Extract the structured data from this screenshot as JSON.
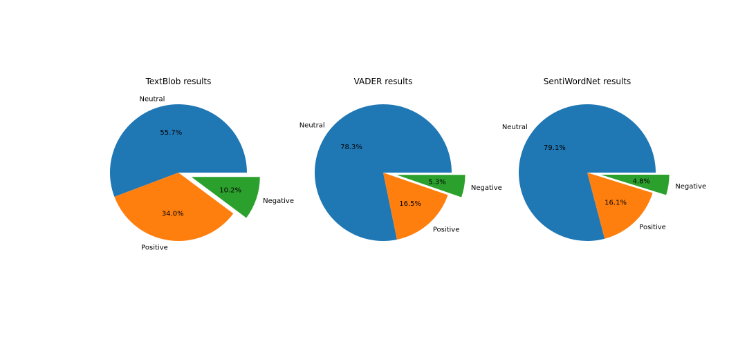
{
  "chart_data": [
    {
      "type": "pie",
      "title": "TextBlob results",
      "slices": [
        {
          "label": "Neutral",
          "value": 55.7,
          "pct_label": "55.7%",
          "color": "#1f77b4",
          "explode": 0
        },
        {
          "label": "Positive",
          "value": 34.0,
          "pct_label": "34.0%",
          "color": "#ff7f0e",
          "explode": 0
        },
        {
          "label": "Negative",
          "value": 10.2,
          "pct_label": "10.2%",
          "color": "#2ca02c",
          "explode": 0.2
        }
      ]
    },
    {
      "type": "pie",
      "title": "VADER results",
      "slices": [
        {
          "label": "Neutral",
          "value": 78.3,
          "pct_label": "78.3%",
          "color": "#1f77b4",
          "explode": 0
        },
        {
          "label": "Positive",
          "value": 16.5,
          "pct_label": "16.5%",
          "color": "#ff7f0e",
          "explode": 0
        },
        {
          "label": "Negative",
          "value": 5.3,
          "pct_label": "5.3%",
          "color": "#2ca02c",
          "explode": 0.2
        }
      ]
    },
    {
      "type": "pie",
      "title": "SentiWordNet results",
      "slices": [
        {
          "label": "Neutral",
          "value": 79.1,
          "pct_label": "79.1%",
          "color": "#1f77b4",
          "explode": 0
        },
        {
          "label": "Positive",
          "value": 16.1,
          "pct_label": "16.1%",
          "color": "#ff7f0e",
          "explode": 0
        },
        {
          "label": "Negative",
          "value": 4.8,
          "pct_label": "4.8%",
          "color": "#2ca02c",
          "explode": 0.2
        }
      ]
    }
  ]
}
